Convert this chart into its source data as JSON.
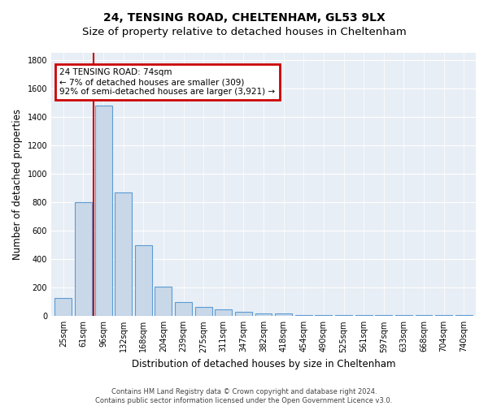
{
  "title": "24, TENSING ROAD, CHELTENHAM, GL53 9LX",
  "subtitle": "Size of property relative to detached houses in Cheltenham",
  "xlabel": "Distribution of detached houses by size in Cheltenham",
  "ylabel": "Number of detached properties",
  "bar_labels": [
    "25sqm",
    "61sqm",
    "96sqm",
    "132sqm",
    "168sqm",
    "204sqm",
    "239sqm",
    "275sqm",
    "311sqm",
    "347sqm",
    "382sqm",
    "418sqm",
    "454sqm",
    "490sqm",
    "525sqm",
    "561sqm",
    "597sqm",
    "633sqm",
    "668sqm",
    "704sqm",
    "740sqm"
  ],
  "bar_values": [
    125,
    800,
    1480,
    870,
    500,
    205,
    100,
    65,
    45,
    30,
    20,
    20,
    10,
    5,
    5,
    5,
    5,
    5,
    5,
    5,
    10
  ],
  "bar_color": "#c8d8e8",
  "bar_edgecolor": "#5b9bd5",
  "annotation_text_line1": "24 TENSING ROAD: 74sqm",
  "annotation_text_line2": "← 7% of detached houses are smaller (309)",
  "annotation_text_line3": "92% of semi-detached houses are larger (3,921) →",
  "annotation_box_color": "#cc0000",
  "vline_x": 1.5,
  "vline_color": "#cc0000",
  "ylim": [
    0,
    1850
  ],
  "yticks": [
    0,
    200,
    400,
    600,
    800,
    1000,
    1200,
    1400,
    1600,
    1800
  ],
  "bg_color": "#e8eef5",
  "footer_line1": "Contains HM Land Registry data © Crown copyright and database right 2024.",
  "footer_line2": "Contains public sector information licensed under the Open Government Licence v3.0.",
  "title_fontsize": 10,
  "xlabel_fontsize": 8.5,
  "ylabel_fontsize": 8.5,
  "tick_fontsize": 7,
  "annotation_fontsize": 7.5,
  "footer_fontsize": 6
}
